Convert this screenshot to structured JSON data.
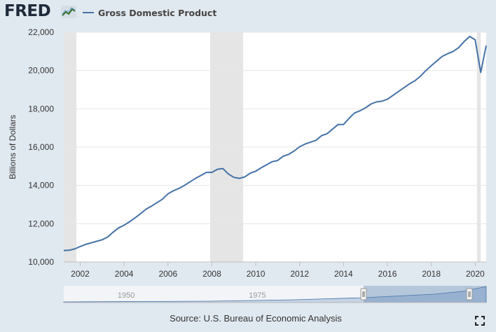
{
  "header": {
    "logo_text": "FRED",
    "legend_label": "Gross Domestic Product"
  },
  "footer": {
    "source": "Source: U.S. Bureau of Economic Analysis"
  },
  "icons": {
    "logo_chart": "line-chart-icon",
    "fullscreen": "fullscreen-icon"
  },
  "colors": {
    "series": "#4572a7",
    "recession": "#e5e5e5",
    "background": "#e1e9f0",
    "plot": "#ffffff"
  },
  "chart_data": {
    "type": "line",
    "title": "Gross Domestic Product",
    "xlabel": "",
    "ylabel": "Billions of Dollars",
    "units": "Billions of Dollars",
    "xlim": [
      2001.25,
      2020.5
    ],
    "ylim": [
      10000,
      22000
    ],
    "x_ticks": [
      2002,
      2004,
      2006,
      2008,
      2010,
      2012,
      2014,
      2016,
      2018,
      2020
    ],
    "y_ticks": [
      10000,
      12000,
      14000,
      16000,
      18000,
      20000,
      22000
    ],
    "y_tick_labels": [
      "10,000",
      "12,000",
      "14,000",
      "16,000",
      "18,000",
      "20,000",
      "22,000"
    ],
    "grid": true,
    "recessions": [
      [
        2001.25,
        2001.83
      ],
      [
        2007.92,
        2009.42
      ],
      [
        2020.08,
        2020.25
      ]
    ],
    "series": [
      {
        "name": "Gross Domestic Product",
        "x": [
          2001.25,
          2001.5,
          2001.75,
          2002.0,
          2002.25,
          2002.5,
          2002.75,
          2003.0,
          2003.25,
          2003.5,
          2003.75,
          2004.0,
          2004.25,
          2004.5,
          2004.75,
          2005.0,
          2005.25,
          2005.5,
          2005.75,
          2006.0,
          2006.25,
          2006.5,
          2006.75,
          2007.0,
          2007.25,
          2007.5,
          2007.75,
          2008.0,
          2008.25,
          2008.5,
          2008.75,
          2009.0,
          2009.25,
          2009.5,
          2009.75,
          2010.0,
          2010.25,
          2010.5,
          2010.75,
          2011.0,
          2011.25,
          2011.5,
          2011.75,
          2012.0,
          2012.25,
          2012.5,
          2012.75,
          2013.0,
          2013.25,
          2013.5,
          2013.75,
          2014.0,
          2014.25,
          2014.5,
          2014.75,
          2015.0,
          2015.25,
          2015.5,
          2015.75,
          2016.0,
          2016.25,
          2016.5,
          2016.75,
          2017.0,
          2017.25,
          2017.5,
          2017.75,
          2018.0,
          2018.25,
          2018.5,
          2018.75,
          2019.0,
          2019.25,
          2019.5,
          2019.75,
          2020.0,
          2020.25,
          2020.5
        ],
        "values": [
          10600,
          10610,
          10680,
          10810,
          10920,
          11000,
          11080,
          11160,
          11300,
          11560,
          11780,
          11920,
          12100,
          12300,
          12520,
          12760,
          12920,
          13100,
          13280,
          13560,
          13720,
          13840,
          14000,
          14180,
          14360,
          14520,
          14680,
          14680,
          14840,
          14880,
          14600,
          14420,
          14370,
          14440,
          14640,
          14740,
          14920,
          15080,
          15240,
          15300,
          15520,
          15620,
          15800,
          16020,
          16160,
          16260,
          16360,
          16600,
          16700,
          16940,
          17180,
          17180,
          17500,
          17780,
          17900,
          18050,
          18250,
          18360,
          18400,
          18500,
          18700,
          18900,
          19100,
          19300,
          19460,
          19700,
          20000,
          20250,
          20500,
          20740,
          20880,
          21000,
          21200,
          21520,
          21780,
          21600,
          19900,
          21300
        ]
      }
    ],
    "navigator": {
      "labels": [
        "1950",
        "1975"
      ],
      "label_years": [
        1950,
        1975
      ]
    }
  }
}
